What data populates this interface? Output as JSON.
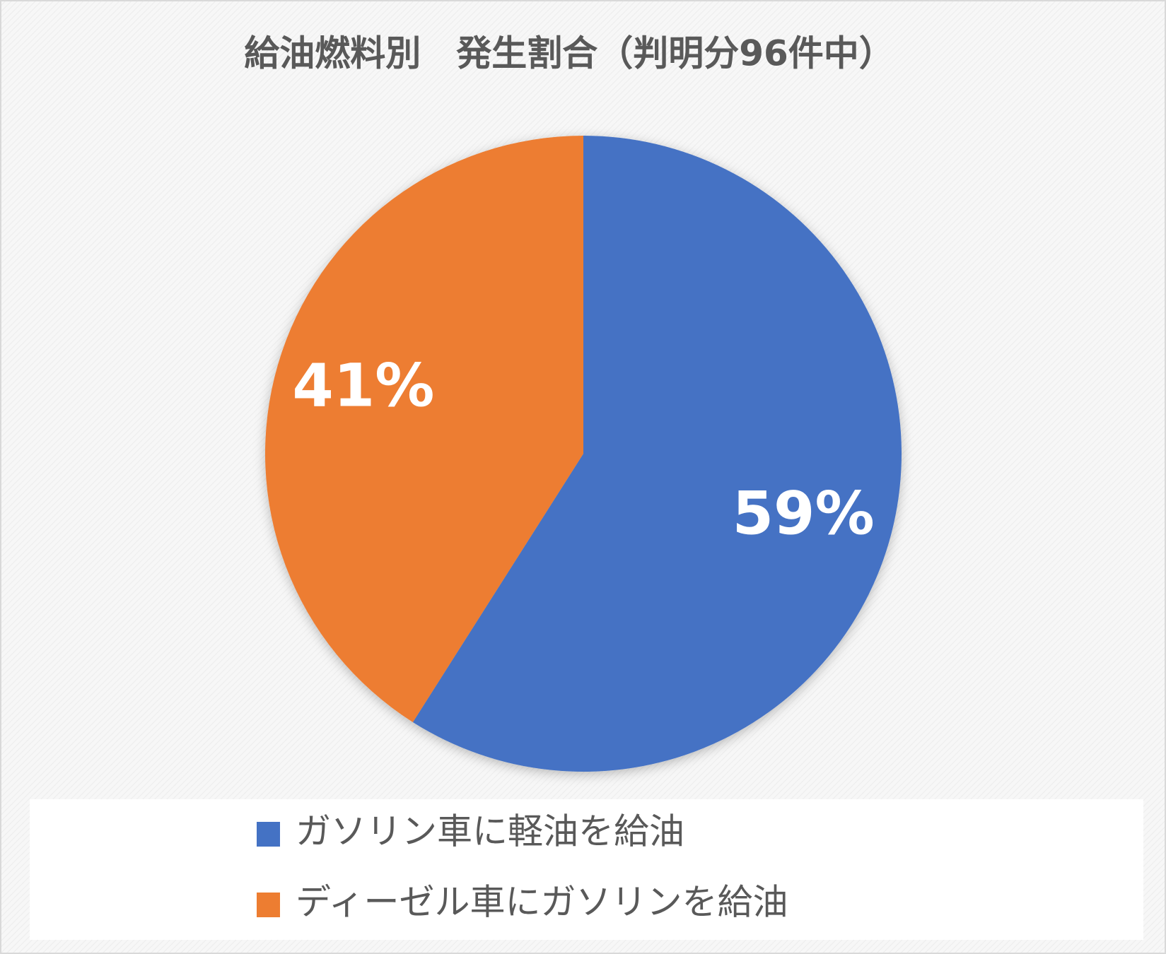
{
  "chart_data": {
    "type": "pie",
    "title": "給油燃料別　発生割合（判明分96件中）",
    "categories": [
      "ガソリン車に軽油を給油",
      "ディーゼル車にガソリンを給油"
    ],
    "values": [
      59,
      41
    ],
    "value_labels": [
      "59%",
      "41%"
    ],
    "colors": [
      "#4472c4",
      "#ed7d31"
    ],
    "legend": "bottom"
  }
}
